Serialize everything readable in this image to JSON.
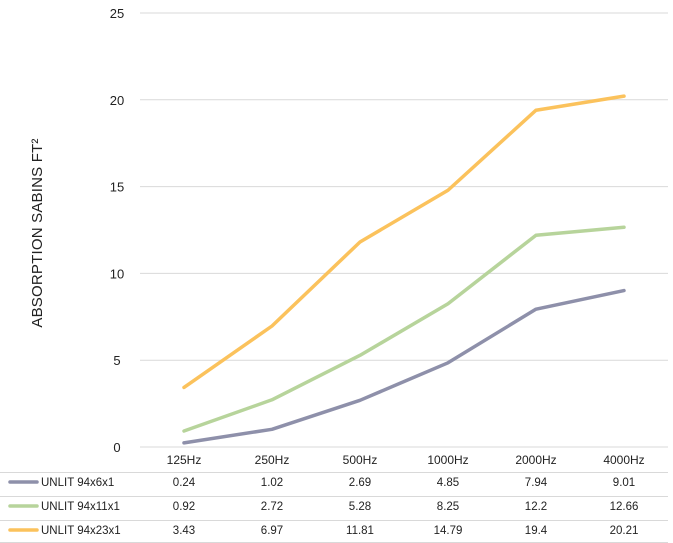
{
  "chart_data": {
    "type": "line",
    "ylabel": "ABSORPTION SABINS FT²",
    "xlabel": "",
    "categories": [
      "125Hz",
      "250Hz",
      "500Hz",
      "1000Hz",
      "2000Hz",
      "4000Hz"
    ],
    "y_ticks": [
      "0",
      "5",
      "10",
      "15",
      "20",
      "25"
    ],
    "ylim": [
      0,
      25
    ],
    "grid": true,
    "legend": "data-table-below",
    "series": [
      {
        "name": "UNLIT 94x6x1",
        "color": "#8e90aa",
        "values": [
          0.24,
          1.02,
          2.69,
          4.85,
          7.94,
          9.01
        ],
        "labels": [
          "0.24",
          "1.02",
          "2.69",
          "4.85",
          "7.94",
          "9.01"
        ]
      },
      {
        "name": "UNLIT 94x11x1",
        "color": "#b7d49b",
        "values": [
          0.92,
          2.72,
          5.28,
          8.25,
          12.2,
          12.66
        ],
        "labels": [
          "0.92",
          "2.72",
          "5.28",
          "8.25",
          "12.2",
          "12.66"
        ]
      },
      {
        "name": "UNLIT 94x23x1",
        "color": "#fbc25c",
        "values": [
          3.43,
          6.97,
          11.81,
          14.79,
          19.4,
          20.21
        ],
        "labels": [
          "3.43",
          "6.97",
          "11.81",
          "14.79",
          "19.4",
          "20.21"
        ]
      }
    ]
  }
}
